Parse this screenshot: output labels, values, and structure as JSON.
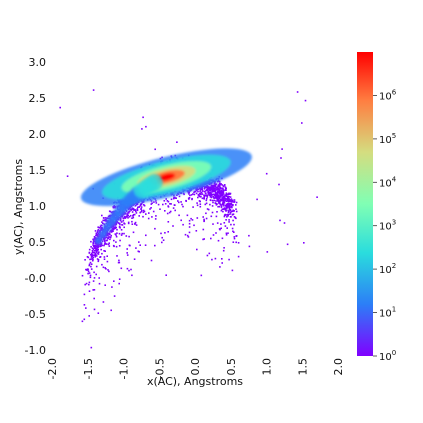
{
  "chart_data": {
    "type": "heatmap",
    "title": "",
    "xlabel": "x(AC), Angstroms",
    "ylabel": "y(AC), Angstroms",
    "xlim": [
      -2.0,
      2.0
    ],
    "ylim": [
      -1.0,
      3.0
    ],
    "x_ticks": [
      -2.0,
      -1.5,
      -1.0,
      -0.5,
      0.0,
      0.5,
      1.0,
      1.5,
      2.0
    ],
    "x_tick_labels": [
      "-2.0",
      "-1.5",
      "-1.0",
      "-0.5",
      "0.0",
      "0.5",
      "1.0",
      "1.5",
      "2.0"
    ],
    "y_ticks": [
      -1.0,
      -0.5,
      0.0,
      0.5,
      1.0,
      1.5,
      2.0,
      2.5,
      3.0
    ],
    "y_tick_labels": [
      "-1.0",
      "-0.5",
      "-0.0",
      "0.5",
      "1.0",
      "1.5",
      "2.0",
      "2.5",
      "3.0"
    ],
    "grid": false,
    "density_shape": {
      "note": "2D histogram of points concentrated along an arc",
      "peak_center": [
        -0.4,
        1.4
      ],
      "arc_start": [
        -1.4,
        0.6
      ],
      "arc_end": [
        0.5,
        1.45
      ],
      "peak_count_approx": 1000000
    },
    "colorbar": {
      "colormap": "rainbow",
      "scale": "log",
      "range": [
        1,
        10000000
      ],
      "tick_values": [
        1,
        10,
        100,
        1000,
        10000,
        100000,
        1000000
      ],
      "tick_labels": [
        {
          "base": "10",
          "exp": "0"
        },
        {
          "base": "10",
          "exp": "1"
        },
        {
          "base": "10",
          "exp": "2"
        },
        {
          "base": "10",
          "exp": "3"
        },
        {
          "base": "10",
          "exp": "4"
        },
        {
          "base": "10",
          "exp": "5"
        },
        {
          "base": "10",
          "exp": "6"
        }
      ],
      "colors": [
        "#8000ff",
        "#2c7ef7",
        "#2adddd",
        "#80ffb4",
        "#d4dd80",
        "#ff7e41",
        "#ff0000"
      ]
    }
  }
}
